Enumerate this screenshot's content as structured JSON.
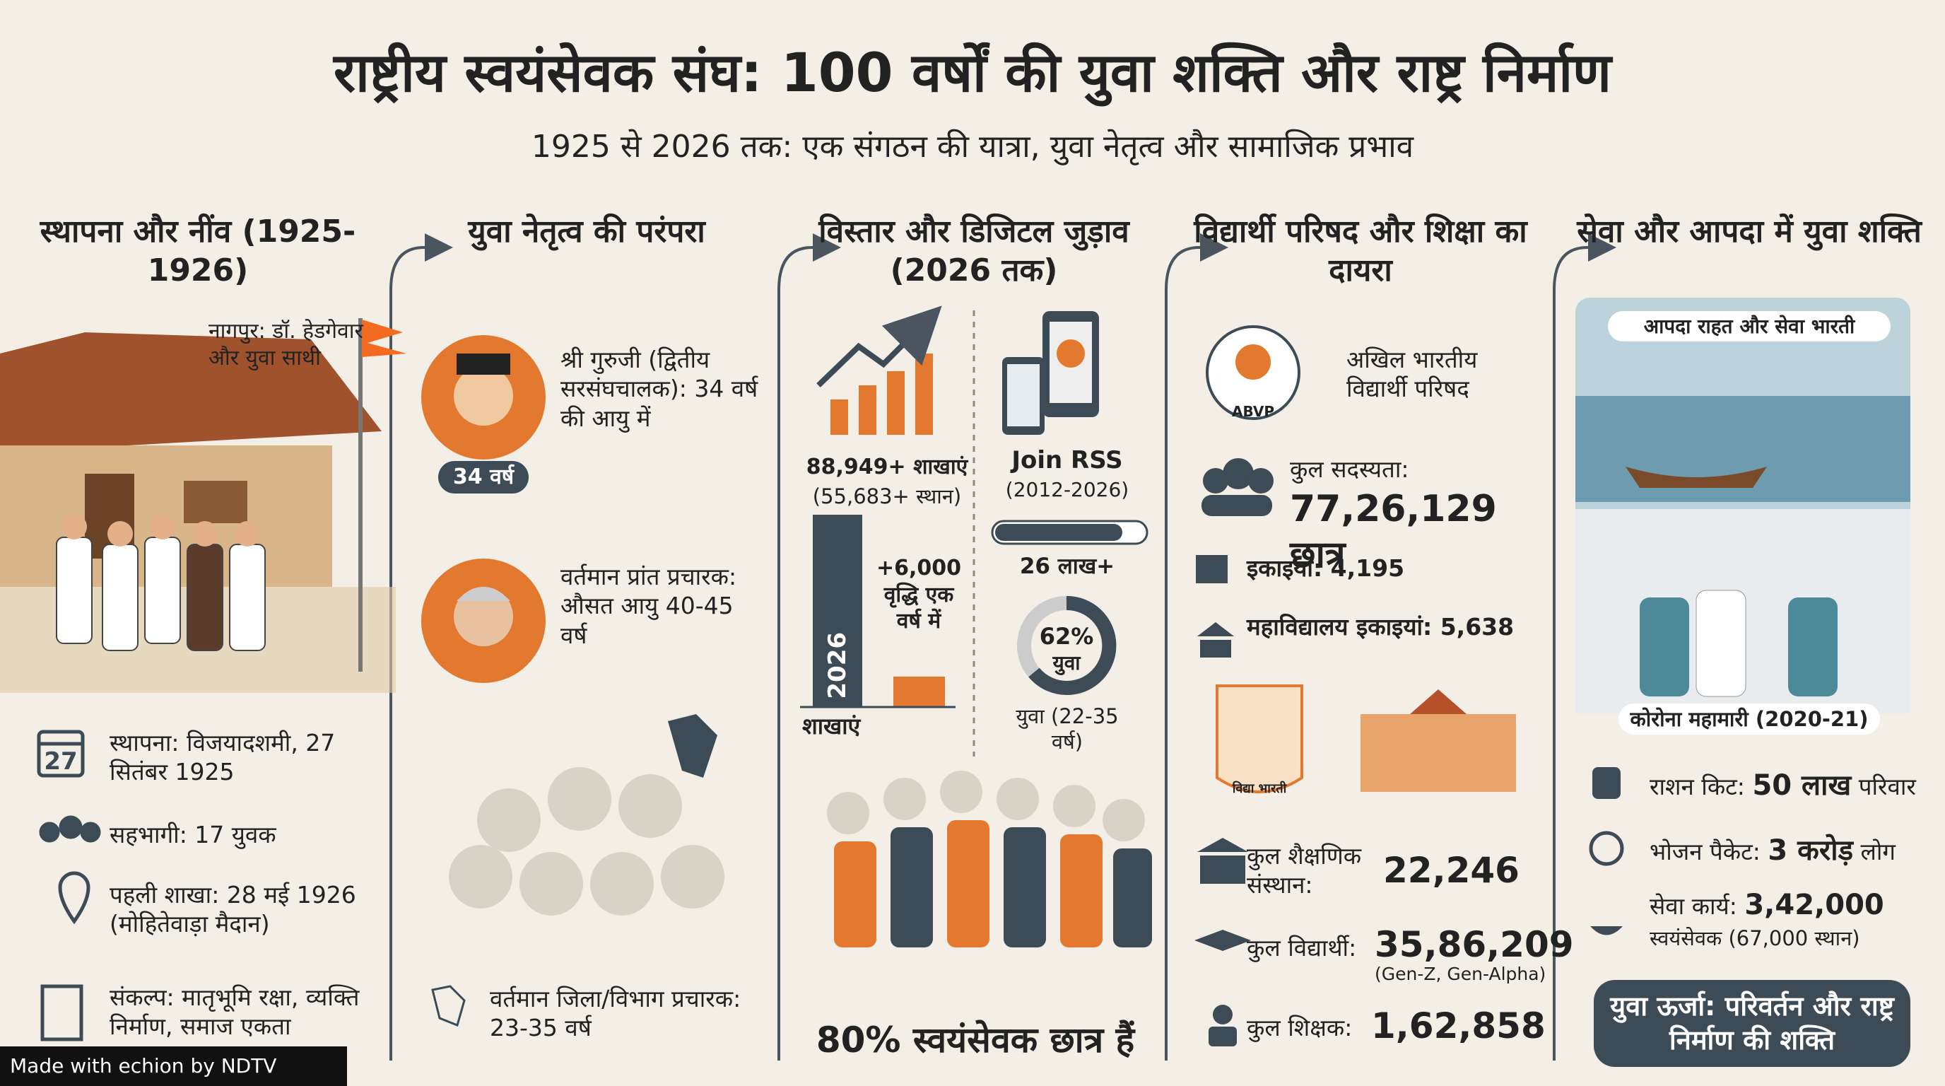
{
  "header": {
    "title": "राष्ट्रीय स्वयंसेवक संघ: 100 वर्षों की युवा शक्ति और राष्ट्र निर्माण",
    "subtitle": "1925 से 2026 तक: एक संगठन की यात्रा, युवा नेतृत्व और सामाजिक प्रभाव"
  },
  "columns": [
    {
      "heading": "स्थापना और नींव (1925-1926)",
      "annotation": "नागपुर: डॉ. हेडगेवार और युवा साथी",
      "calendar_day": "27",
      "items": [
        "स्थापना: विजयादशमी, 27 सितंबर 1925",
        "सहभागी: 17 युवक",
        "पहली शाखा: 28 मई 1926 (मोहितेवाड़ा मैदान)",
        "संकल्प: मातृभूमि रक्षा, व्यक्ति निर्माण, समाज एकता"
      ]
    },
    {
      "heading": "युवा नेतृत्व की परंपरा",
      "guruji": "श्री गुरुजी (द्वितीय सरसंघचालक): 34 वर्ष की आयु में",
      "badge": "34 वर्ष",
      "pranth": "वर्तमान प्रांत प्रचारक: औसत आयु 40-45 वर्ष",
      "jila": "वर्तमान जिला/विभाग प्रचारक: 23-35 वर्ष"
    },
    {
      "heading": "विस्तार और डिजिटल जुड़ाव (2026 तक)",
      "shakhas": "88,949+ शाखाएं",
      "places": "(55,683+ स्थान)",
      "bar_label": "2026",
      "growth": "+6,000 वृद्धि एक वर्ष में",
      "axis_label": "शाखाएं",
      "join": "Join RSS",
      "join_years": "(2012-2026)",
      "join_count": "26 लाख+",
      "donut_value": "62%",
      "donut_label": "युवा",
      "youth_caption": "युवा (22-35 वर्ष)",
      "footer": "80% स्वयंसेवक छात्र हैं"
    },
    {
      "heading": "विद्यार्थी परिषद और शिक्षा का दायरा",
      "abvp_logo": "ABVP",
      "abvp_name": "अखिल भारतीय विद्यार्थी परिषद",
      "membership_label": "कुल सदस्यता:",
      "membership_value": "77,26,129 छात्र",
      "units": "इकाइयां: 4,195",
      "college_units": "महाविद्यालय इकाइयां: 5,638",
      "vb_logo": "विद्या भारती",
      "institutions_label": "कुल शैक्षणिक संस्थान:",
      "institutions_value": "22,246",
      "students_label": "कुल विद्यार्थी:",
      "students_value": "35,86,209",
      "students_note": "(Gen-Z, Gen-Alpha)",
      "teachers_label": "कुल शिक्षक:",
      "teachers_value": "1,62,858"
    },
    {
      "heading": "सेवा और आपदा में युवा शक्ति",
      "relief_caption": "आपदा राहत और सेवा भारती",
      "covid_caption": "कोरोना महामारी (2020-21)",
      "ration_label": "राशन किट:",
      "ration_value": "50 लाख",
      "ration_unit": "परिवार",
      "food_label": "भोजन पैकेट:",
      "food_value": "3 करोड़",
      "food_unit": "लोग",
      "seva_label": "सेवा कार्य:",
      "seva_value": "3,42,000",
      "seva_unit": "स्वयंसेवक (67,000 स्थान)",
      "banner": "युवा ऊर्जा: परिवर्तन और राष्ट्र निर्माण की शक्ति"
    }
  ],
  "footer_badge": "Made with echion by NDTV"
}
